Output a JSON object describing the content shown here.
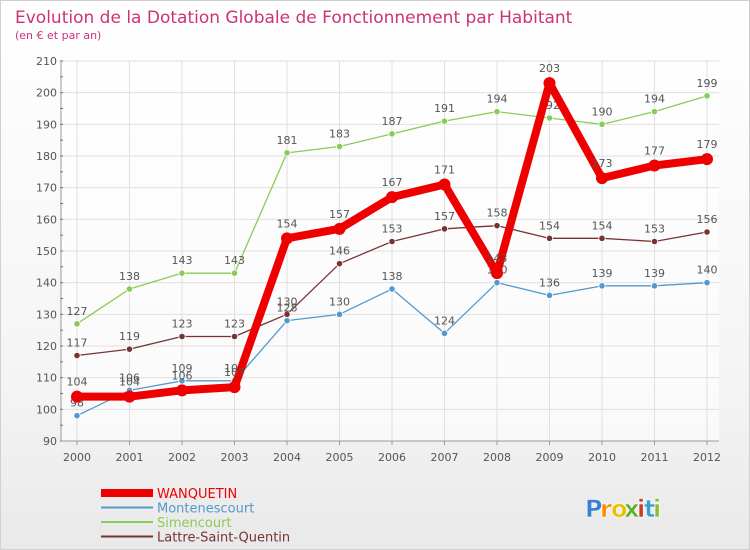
{
  "chart_data": {
    "type": "line",
    "title": "Evolution de la Dotation Globale de Fonctionnement par Habitant",
    "subtitle": "(en € et par an)",
    "xlabel": "",
    "ylabel": "",
    "ylim": [
      90,
      210
    ],
    "yticks": [
      90,
      100,
      110,
      120,
      130,
      140,
      150,
      160,
      170,
      180,
      190,
      200,
      210
    ],
    "grid": true,
    "legend_position": "bottom-left",
    "x": [
      "2000",
      "2001",
      "2002",
      "2003",
      "2004",
      "2005",
      "2006",
      "2007",
      "2008",
      "2009",
      "2010",
      "2011",
      "2012"
    ],
    "series": [
      {
        "name": "Simencourt",
        "color": "#88cc55",
        "emphasis": false,
        "values": [
          127,
          138,
          143,
          143,
          181,
          183,
          187,
          191,
          194,
          192,
          190,
          194,
          199
        ]
      },
      {
        "name": "Lattre-Saint-Quentin",
        "color": "#773333",
        "emphasis": false,
        "values": [
          117,
          119,
          123,
          123,
          130,
          146,
          153,
          157,
          158,
          154,
          154,
          153,
          156
        ]
      },
      {
        "name": "Montenescourt",
        "color": "#5599cc",
        "emphasis": false,
        "values": [
          98,
          106,
          109,
          109,
          128,
          130,
          138,
          124,
          140,
          136,
          139,
          139,
          140
        ]
      },
      {
        "name": "WANQUETIN",
        "color": "#ee0000",
        "emphasis": true,
        "values": [
          104,
          104,
          106,
          107,
          154,
          157,
          167,
          171,
          143,
          203,
          173,
          177,
          179
        ]
      }
    ],
    "legend_order": [
      "WANQUETIN",
      "Montenescourt",
      "Simencourt",
      "Lattre-Saint-Quentin"
    ]
  },
  "branding": {
    "logo_text": "Proxiti",
    "letter_colors": [
      "#3a7fd0",
      "#ff8a00",
      "#e8c000",
      "#5cb030",
      "#d03a2a",
      "#3a9fd0",
      "#88c030"
    ]
  },
  "colors": {
    "title": "#cc3377",
    "axis_text": "#555555",
    "grid": "#e0e0e0",
    "label_text": "#555555"
  }
}
